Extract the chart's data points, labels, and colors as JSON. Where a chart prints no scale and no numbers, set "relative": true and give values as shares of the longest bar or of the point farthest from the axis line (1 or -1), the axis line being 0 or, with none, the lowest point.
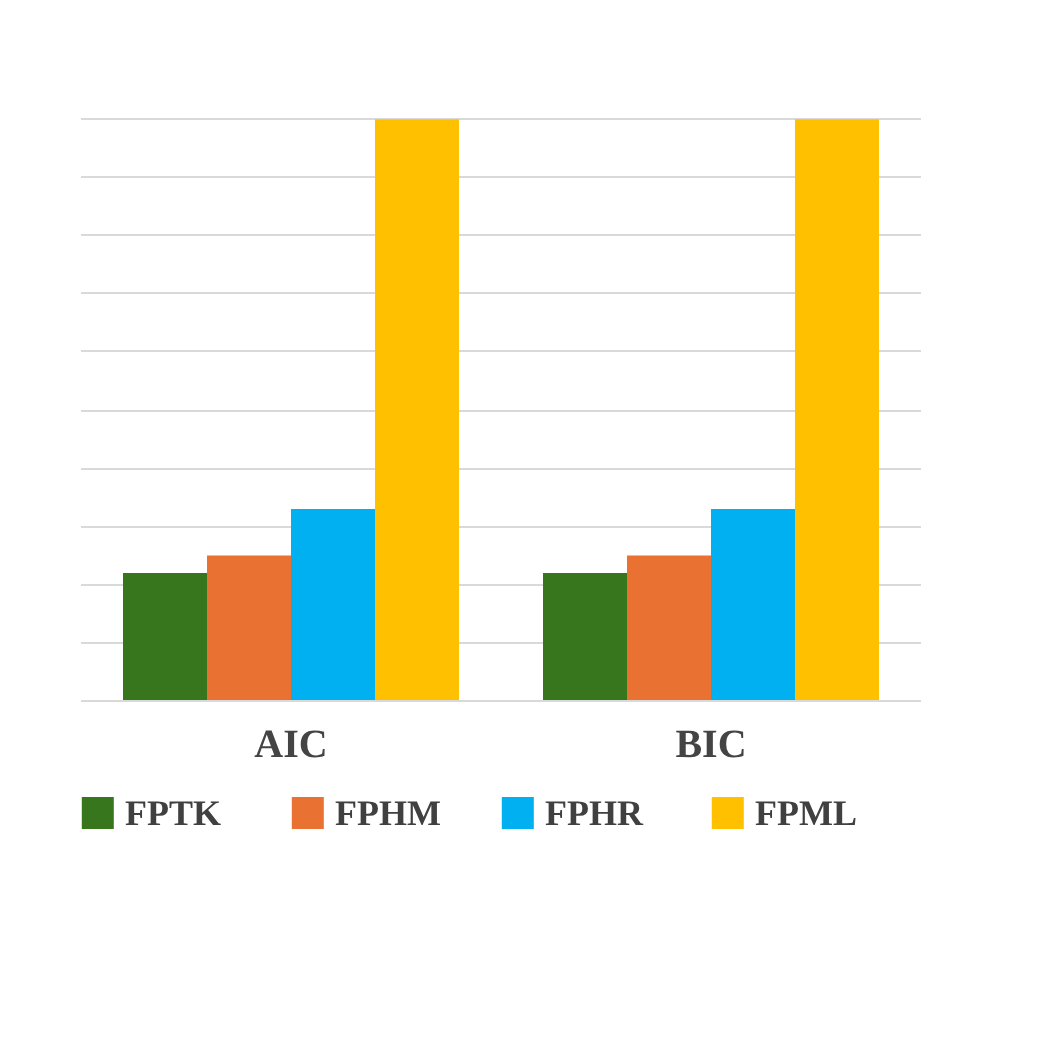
{
  "chart_data": {
    "type": "bar",
    "relative": true,
    "categories": [
      "AIC",
      "BIC"
    ],
    "series": [
      {
        "name": "FPTK",
        "color": "#38761d",
        "values": [
          0.22,
          0.22
        ]
      },
      {
        "name": "FPHM",
        "color": "#e97132",
        "values": [
          0.25,
          0.25
        ]
      },
      {
        "name": "FPHR",
        "color": "#00b0f0",
        "values": [
          0.33,
          0.33
        ]
      },
      {
        "name": "FPML",
        "color": "#ffc000",
        "values": [
          1,
          1
        ]
      }
    ],
    "grid": "y",
    "legend": "bottom"
  }
}
